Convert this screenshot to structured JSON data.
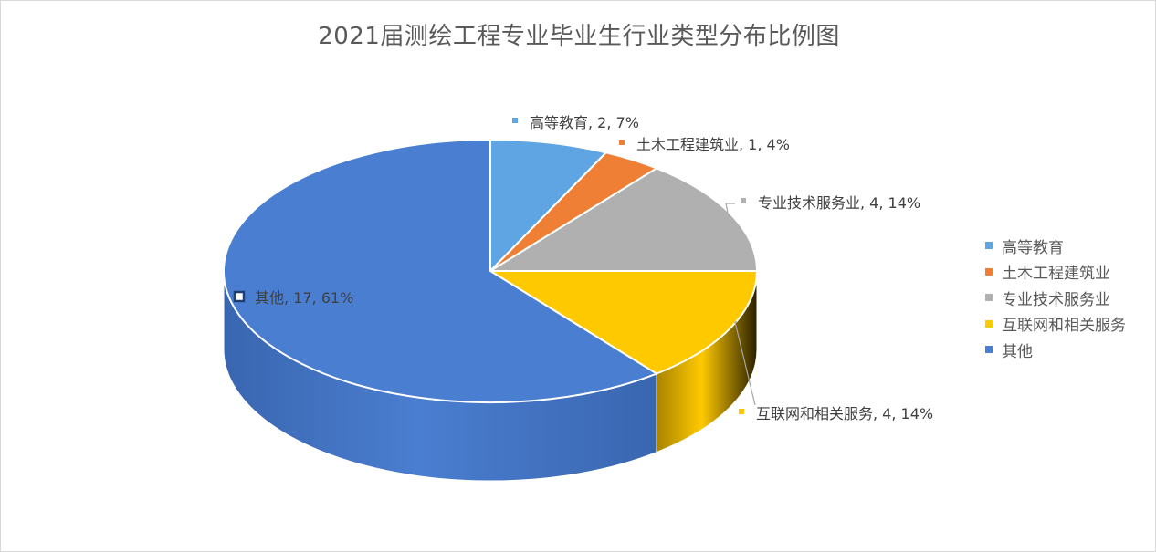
{
  "chart_data": {
    "type": "pie",
    "title": "2021届测绘工程专业毕业生行业类型分布比例图",
    "categories": [
      "高等教育",
      "土木工程建筑业",
      "专业技术服务业",
      "互联网和相关服务",
      "其他"
    ],
    "values": [
      2,
      1,
      4,
      4,
      17
    ],
    "percents": [
      "7%",
      "4%",
      "14%",
      "14%",
      "61%"
    ],
    "data_labels": [
      "高等教育, 2, 7%",
      "土木工程建筑业, 1, 4%",
      "专业技术服务业, 4, 14%",
      "互联网和相关服务, 4, 14%",
      "其他, 17, 61%"
    ],
    "colors": [
      "#5fa4e3",
      "#f07f36",
      "#b0b0b0",
      "#ffc900",
      "#4a7ed0"
    ],
    "side_colors": [
      "#3e7ab8",
      "#b85a20",
      "#7e7e7e",
      "#a98400",
      "#3a66b0"
    ],
    "legend_position": "right",
    "style": "3d",
    "explode": false
  }
}
